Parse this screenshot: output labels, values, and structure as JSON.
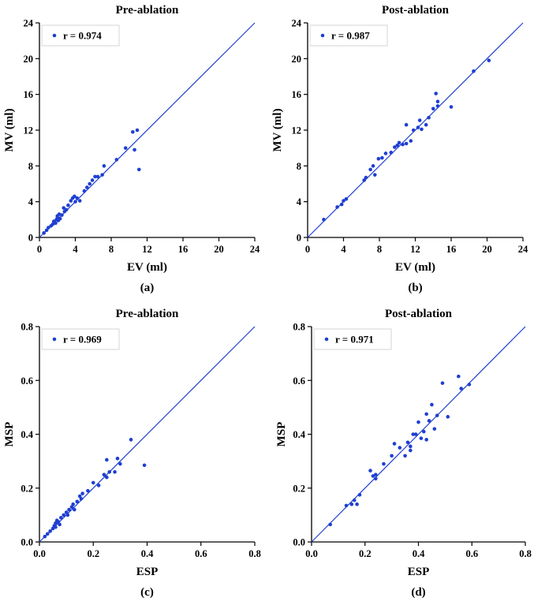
{
  "chart_data": [
    {
      "type": "scatter",
      "title": "Pre-ablation",
      "xlabel": "EV (ml)",
      "ylabel": "MV (ml)",
      "panel_label": "(a)",
      "xlim": [
        0,
        24
      ],
      "ylim": [
        0,
        24
      ],
      "xticks": [
        "0",
        "4",
        "8",
        "12",
        "16",
        "20",
        "24"
      ],
      "yticks": [
        "0",
        "4",
        "8",
        "12",
        "16",
        "20",
        "24"
      ],
      "legend": "r = 0.974",
      "legend_position": "top-left",
      "identity_line": true,
      "color": "#1f3fd1",
      "x": [
        0.5,
        0.8,
        1.0,
        1.3,
        1.5,
        1.6,
        1.8,
        1.9,
        2.0,
        2.0,
        2.1,
        2.2,
        2.3,
        2.5,
        2.7,
        2.8,
        3.0,
        3.2,
        3.5,
        3.7,
        3.9,
        4.0,
        4.2,
        4.5,
        5.0,
        5.3,
        5.6,
        5.9,
        6.2,
        6.5,
        7.0,
        7.2,
        8.6,
        9.6,
        10.4,
        10.6,
        10.9,
        11.1
      ],
      "y": [
        0.5,
        0.8,
        1.1,
        1.3,
        1.5,
        1.8,
        1.6,
        2.0,
        2.2,
        2.4,
        1.9,
        2.6,
        2.1,
        2.5,
        3.3,
        2.9,
        3.1,
        3.6,
        4.1,
        4.4,
        4.6,
        4.0,
        4.4,
        4.1,
        5.2,
        5.6,
        6.0,
        6.4,
        6.8,
        6.8,
        7.0,
        8.0,
        8.7,
        10.0,
        11.8,
        9.8,
        12.0,
        7.6
      ]
    },
    {
      "type": "scatter",
      "title": "Post-ablation",
      "xlabel": "EV (ml)",
      "ylabel": "MV (ml)",
      "panel_label": "(b)",
      "xlim": [
        0,
        24
      ],
      "ylim": [
        0,
        24
      ],
      "xticks": [
        "0",
        "4",
        "8",
        "12",
        "16",
        "20",
        "24"
      ],
      "yticks": [
        "0",
        "4",
        "8",
        "12",
        "16",
        "20",
        "24"
      ],
      "legend": "r = 0.987",
      "legend_position": "top-left",
      "identity_line": true,
      "color": "#1f3fd1",
      "x": [
        1.8,
        3.3,
        3.8,
        4.0,
        4.3,
        6.3,
        6.5,
        7.0,
        7.3,
        7.5,
        7.9,
        8.3,
        8.7,
        9.3,
        9.7,
        10.0,
        10.2,
        10.6,
        11.0,
        11.0,
        11.5,
        11.8,
        12.3,
        12.5,
        12.7,
        13.2,
        13.5,
        14.0,
        14.3,
        14.5,
        14.5,
        16.0,
        18.5,
        20.2
      ],
      "y": [
        2.0,
        3.4,
        3.7,
        4.1,
        4.3,
        6.4,
        6.7,
        7.6,
        8.0,
        7.0,
        8.8,
        8.9,
        9.4,
        9.5,
        10.1,
        10.3,
        10.6,
        10.4,
        12.6,
        10.5,
        10.8,
        12.0,
        12.3,
        13.1,
        12.1,
        12.6,
        13.4,
        14.4,
        16.1,
        15.2,
        14.7,
        14.6,
        18.6,
        19.8
      ]
    },
    {
      "type": "scatter",
      "title": "Pre-ablation",
      "xlabel": "ESP",
      "ylabel": "MSP",
      "panel_label": "(c)",
      "xlim": [
        0,
        0.8
      ],
      "ylim": [
        0,
        0.8
      ],
      "xticks": [
        "0.0",
        "0.2",
        "0.4",
        "0.6",
        "0.8"
      ],
      "yticks": [
        "0.0",
        "0.2",
        "0.4",
        "0.6",
        "0.8"
      ],
      "legend": "r = 0.969",
      "legend_position": "top-left",
      "identity_line": true,
      "color": "#1f3fd1",
      "x": [
        0.02,
        0.03,
        0.04,
        0.05,
        0.055,
        0.06,
        0.06,
        0.065,
        0.07,
        0.075,
        0.08,
        0.09,
        0.1,
        0.105,
        0.11,
        0.12,
        0.125,
        0.13,
        0.14,
        0.15,
        0.155,
        0.16,
        0.18,
        0.2,
        0.22,
        0.24,
        0.25,
        0.25,
        0.26,
        0.28,
        0.29,
        0.3,
        0.34,
        0.39
      ],
      "y": [
        0.02,
        0.03,
        0.04,
        0.05,
        0.06,
        0.055,
        0.07,
        0.08,
        0.075,
        0.065,
        0.09,
        0.1,
        0.11,
        0.1,
        0.12,
        0.13,
        0.14,
        0.12,
        0.15,
        0.17,
        0.16,
        0.18,
        0.19,
        0.22,
        0.21,
        0.25,
        0.24,
        0.305,
        0.26,
        0.26,
        0.31,
        0.29,
        0.38,
        0.285
      ]
    },
    {
      "type": "scatter",
      "title": "Post-ablation",
      "xlabel": "ESP",
      "ylabel": "MSP",
      "panel_label": "(d)",
      "xlim": [
        0,
        0.8
      ],
      "ylim": [
        0,
        0.8
      ],
      "xticks": [
        "0.0",
        "0.2",
        "0.4",
        "0.6",
        "0.8"
      ],
      "yticks": [
        "0.0",
        "0.2",
        "0.4",
        "0.6",
        "0.8"
      ],
      "legend": "r = 0.971",
      "legend_position": "top-left",
      "identity_line": true,
      "color": "#1f3fd1",
      "x": [
        0.07,
        0.13,
        0.15,
        0.16,
        0.17,
        0.18,
        0.22,
        0.23,
        0.24,
        0.24,
        0.27,
        0.3,
        0.31,
        0.33,
        0.35,
        0.36,
        0.37,
        0.37,
        0.38,
        0.39,
        0.4,
        0.41,
        0.42,
        0.43,
        0.43,
        0.44,
        0.45,
        0.46,
        0.47,
        0.49,
        0.51,
        0.55,
        0.56,
        0.59
      ],
      "y": [
        0.065,
        0.135,
        0.14,
        0.155,
        0.14,
        0.175,
        0.265,
        0.245,
        0.235,
        0.25,
        0.29,
        0.32,
        0.365,
        0.35,
        0.32,
        0.37,
        0.34,
        0.355,
        0.4,
        0.4,
        0.445,
        0.385,
        0.41,
        0.475,
        0.38,
        0.45,
        0.51,
        0.42,
        0.47,
        0.59,
        0.465,
        0.615,
        0.57,
        0.585
      ]
    }
  ]
}
